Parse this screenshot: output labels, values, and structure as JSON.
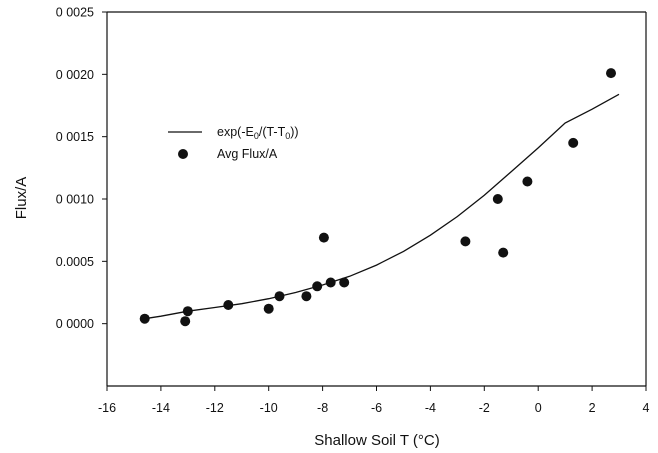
{
  "chart_data": {
    "type": "scatter",
    "xlabel": "Shallow Soil T (°C)",
    "ylabel": "Flux/A",
    "xlim": [
      -16,
      4
    ],
    "ylim": [
      -0.0005,
      0.0025
    ],
    "x_ticks": [
      -16,
      -14,
      -12,
      -10,
      -8,
      -6,
      -4,
      -2,
      0,
      2,
      4
    ],
    "y_ticks": [
      0.0,
      0.0005,
      0.001,
      0.0015,
      0.002,
      0.0025
    ],
    "y_tick_labels": [
      "0 0000",
      "0.0005",
      "0 0010",
      "0 0015",
      "0 0020",
      "0 0025"
    ],
    "grid": false,
    "legend_position": "upper-left",
    "series": [
      {
        "name": "exp(-E0/(T-T0))",
        "kind": "line",
        "x": [
          -14.6,
          -14,
          -13,
          -12,
          -11,
          -10,
          -9,
          -8,
          -7,
          -6,
          -5,
          -4,
          -3,
          -2,
          -1,
          0,
          1,
          2,
          3.0
        ],
        "y": [
          4e-05,
          6e-05,
          0.0001,
          0.00013,
          0.00016,
          0.0002,
          0.00025,
          0.00031,
          0.00038,
          0.00047,
          0.00058,
          0.00071,
          0.00086,
          0.00103,
          0.00122,
          0.00141,
          0.00161,
          0.00172,
          0.00184
        ]
      },
      {
        "name": "Avg Flux/A",
        "kind": "scatter",
        "x": [
          -14.6,
          -13.1,
          -13.0,
          -11.5,
          -10.0,
          -9.6,
          -8.6,
          -8.2,
          -7.95,
          -7.7,
          -7.2,
          -2.7,
          -1.5,
          -1.3,
          -0.4,
          1.3,
          2.7
        ],
        "y": [
          4e-05,
          2e-05,
          0.0001,
          0.00015,
          0.00012,
          0.00022,
          0.00022,
          0.0003,
          0.00069,
          0.00033,
          0.00033,
          0.00066,
          0.001,
          0.00057,
          0.00114,
          0.00145,
          0.00201
        ]
      }
    ]
  }
}
